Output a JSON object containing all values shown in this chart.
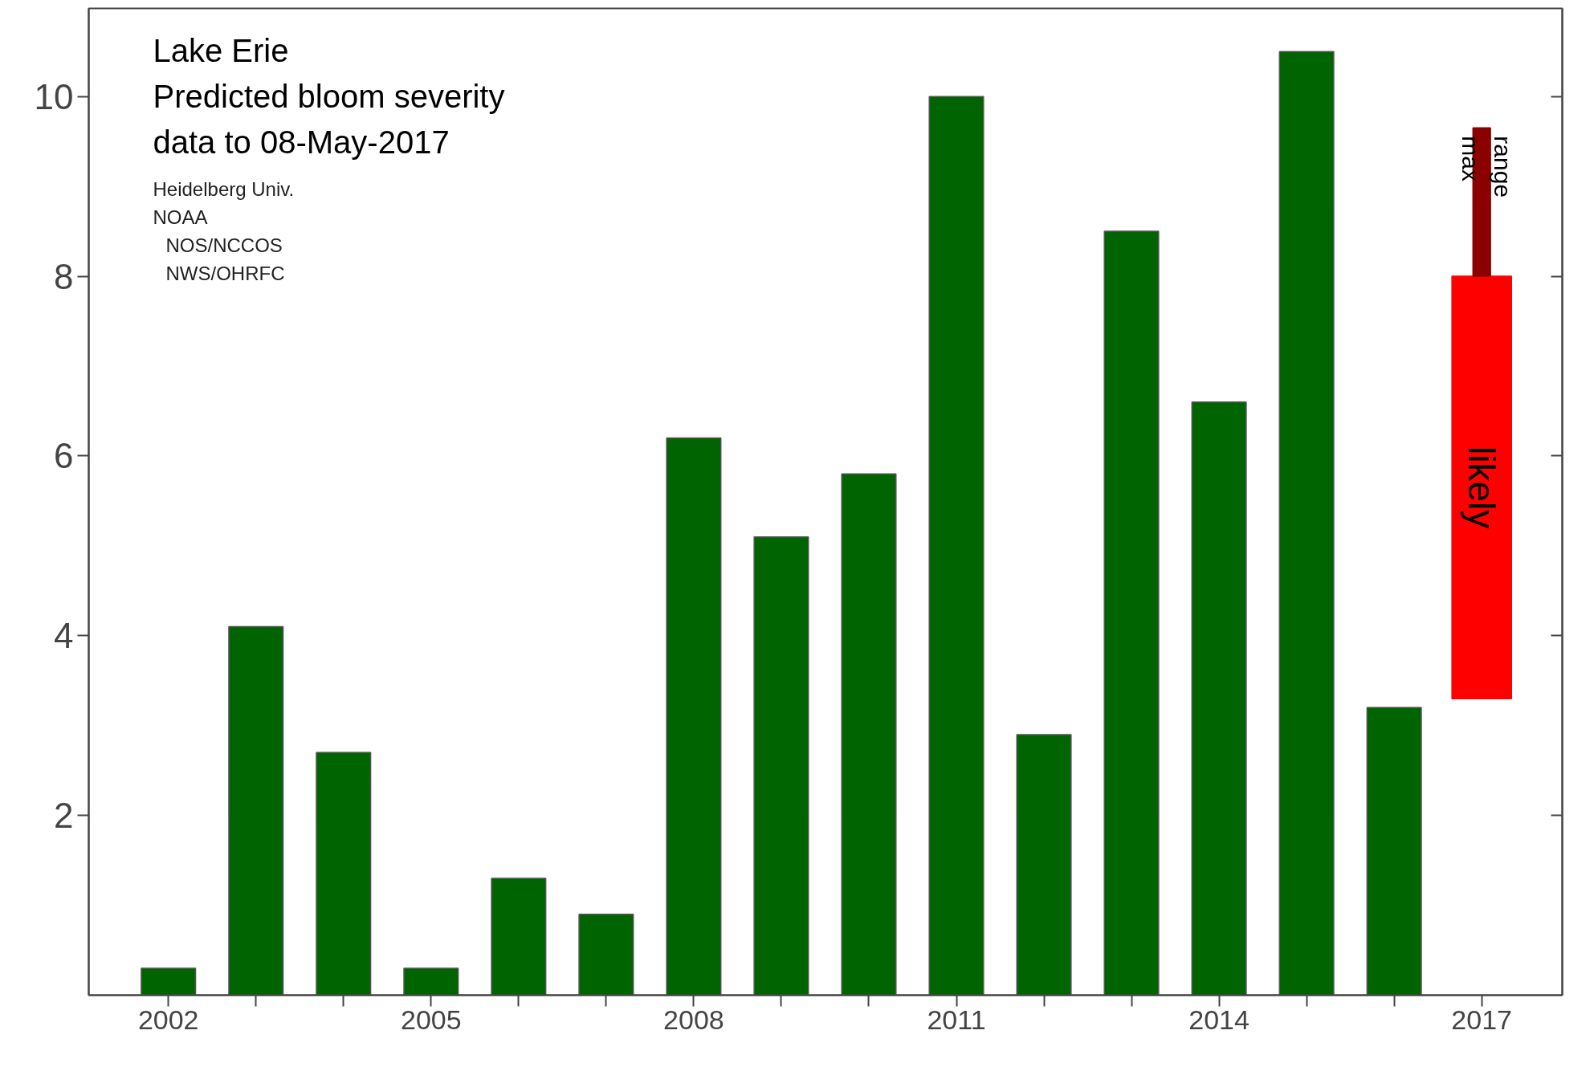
{
  "chart_data": {
    "type": "bar",
    "title": "Lake Erie",
    "subtitle": "Predicted bloom severity\ndata to 08-May-2017",
    "annotations": [
      "Heidelberg Univ.",
      "NOAA",
      "  NOS/NCCOS",
      "  NWS/OHRFC"
    ],
    "xlim": [
      2001.09,
      2017.92
    ],
    "ylim": [
      0,
      10.98
    ],
    "xticks": [
      2002,
      {
        "value": 2003,
        "label": null
      },
      {
        "value": 2004,
        "label": null
      },
      2005,
      {
        "value": 2006,
        "label": null
      },
      {
        "value": 2007,
        "label": null
      },
      2008,
      {
        "value": 2009,
        "label": null
      },
      {
        "value": 2010,
        "label": null
      },
      2011,
      {
        "value": 2012,
        "label": null
      },
      {
        "value": 2013,
        "label": null
      },
      2014,
      {
        "value": 2015,
        "label": null
      },
      {
        "value": 2016,
        "label": null
      },
      2017
    ],
    "yticks": [
      2,
      4,
      6,
      8,
      10
    ],
    "grid": false,
    "series": [
      {
        "color": "#006400",
        "x": [
          2002,
          2003,
          2004,
          2005,
          2006,
          2007,
          2008,
          2009,
          2010,
          2011,
          2012,
          2013,
          2014,
          2015,
          2016
        ],
        "values": [
          0.3,
          4.1,
          2.7,
          0.3,
          1.3,
          0.9,
          6.2,
          5.1,
          5.8,
          10.0,
          2.9,
          8.5,
          6.6,
          10.5,
          3.2
        ]
      },
      {
        "name": "likely",
        "color": "#ff0000",
        "x": [
          2017
        ],
        "base": [
          3.3
        ],
        "values": [
          4.7
        ]
      },
      {
        "name": "max range",
        "color": "#8b0000",
        "x": [
          2017
        ],
        "base": [
          8.0
        ],
        "values": [
          1.65
        ]
      }
    ]
  }
}
